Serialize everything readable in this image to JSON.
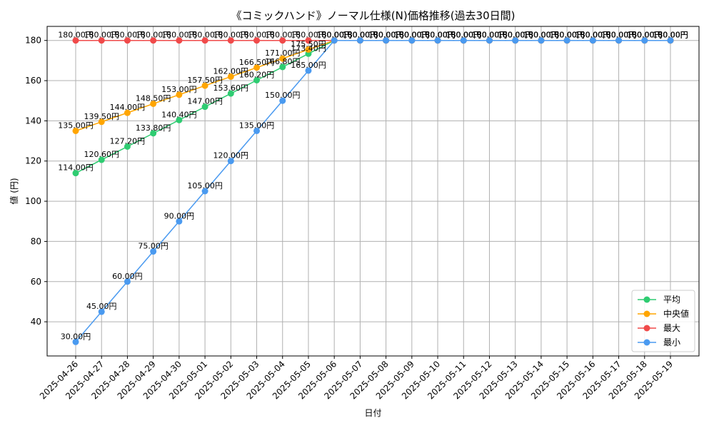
{
  "chart_data": {
    "type": "line",
    "title": "《コミックハンド》ノーマル仕様(N)価格推移(過去30日間)",
    "xlabel": "日付",
    "ylabel": "値 (円)",
    "ylim": [
      23,
      187
    ],
    "yticks": [
      40,
      60,
      80,
      100,
      120,
      140,
      160,
      180
    ],
    "grid": true,
    "legend_position": "bottom-right",
    "categories": [
      "2025-04-26",
      "2025-04-27",
      "2025-04-28",
      "2025-04-29",
      "2025-04-30",
      "2025-05-01",
      "2025-05-02",
      "2025-05-03",
      "2025-05-04",
      "2025-05-05",
      "2025-05-06",
      "2025-05-07",
      "2025-05-08",
      "2025-05-09",
      "2025-05-10",
      "2025-05-11",
      "2025-05-12",
      "2025-05-13",
      "2025-05-14",
      "2025-05-15",
      "2025-05-16",
      "2025-05-17",
      "2025-05-18",
      "2025-05-19"
    ],
    "series": [
      {
        "name": "平均",
        "color": "#2ecc71",
        "values": [
          114.0,
          120.6,
          127.2,
          133.8,
          140.4,
          147.0,
          153.6,
          160.2,
          166.8,
          173.4,
          180,
          180,
          180,
          180,
          180,
          180,
          180,
          180,
          180,
          180,
          180,
          180,
          180,
          180
        ]
      },
      {
        "name": "中央値",
        "color": "#ffa500",
        "values": [
          135.0,
          139.5,
          144.0,
          148.5,
          153.0,
          157.5,
          162.0,
          166.5,
          171.0,
          175.5,
          180,
          180,
          180,
          180,
          180,
          180,
          180,
          180,
          180,
          180,
          180,
          180,
          180,
          180
        ]
      },
      {
        "name": "最大",
        "color": "#f04a4a",
        "values": [
          180,
          180,
          180,
          180,
          180,
          180,
          180,
          180,
          180,
          180,
          180,
          180,
          180,
          180,
          180,
          180,
          180,
          180,
          180,
          180,
          180,
          180,
          180,
          180
        ]
      },
      {
        "name": "最小",
        "color": "#4a9af0",
        "values": [
          30,
          45,
          60,
          75,
          90,
          105,
          120,
          135,
          150,
          165,
          180,
          180,
          180,
          180,
          180,
          180,
          180,
          180,
          180,
          180,
          180,
          180,
          180,
          180
        ]
      }
    ],
    "value_suffix": "円"
  }
}
